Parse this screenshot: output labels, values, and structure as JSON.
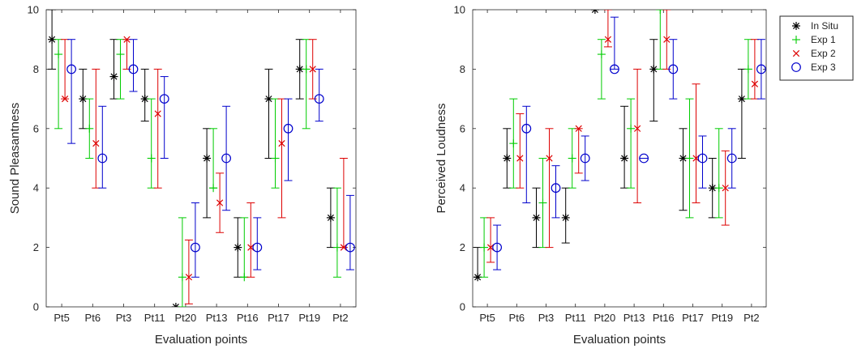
{
  "colors": {
    "In Situ": "#000000",
    "Exp 1": "#00cc00",
    "Exp 2": "#dd0000",
    "Exp 3": "#0000cc",
    "axis": "#262626",
    "background": "#ffffff"
  },
  "legend": {
    "placement": "top-right",
    "entries": [
      {
        "name": "In Situ",
        "marker": "asterisk"
      },
      {
        "name": "Exp 1",
        "marker": "plus"
      },
      {
        "name": "Exp 2",
        "marker": "cross"
      },
      {
        "name": "Exp 3",
        "marker": "circle"
      }
    ]
  },
  "chart_data": [
    {
      "type": "scatter",
      "title": "",
      "xlabel": "Evaluation points",
      "ylabel": "Sound Pleasantness",
      "ylim": [
        0,
        10
      ],
      "yticks": [
        0,
        2,
        4,
        6,
        8,
        10
      ],
      "grid": false,
      "categories": [
        "Pt5",
        "Pt6",
        "Pt3",
        "Pt11",
        "Pt20",
        "Pt13",
        "Pt16",
        "Pt17",
        "Pt19",
        "Pt2"
      ],
      "series": [
        {
          "name": "In Situ",
          "values": [
            9,
            7,
            7.75,
            7,
            0,
            5,
            2,
            7,
            8,
            3
          ],
          "low": [
            8,
            6,
            7,
            6.25,
            0,
            3,
            1,
            5,
            7,
            2
          ],
          "high": [
            10,
            8,
            9,
            8,
            0,
            6,
            3,
            8,
            9,
            4
          ]
        },
        {
          "name": "Exp 1",
          "values": [
            8.5,
            6,
            8.5,
            5,
            1,
            4,
            1,
            5,
            8,
            2
          ],
          "low": [
            6,
            5,
            7,
            4,
            0,
            4,
            1,
            4,
            6,
            1
          ],
          "high": [
            9,
            7,
            9,
            7,
            3,
            6,
            3,
            7,
            9,
            4
          ]
        },
        {
          "name": "Exp 2",
          "values": [
            7,
            5.5,
            9,
            6.5,
            1,
            3.5,
            2,
            5.5,
            8,
            2
          ],
          "low": [
            7,
            4,
            8,
            4,
            0.1,
            2.5,
            1,
            3,
            7,
            2
          ],
          "high": [
            9,
            8,
            9,
            8,
            2.25,
            4.5,
            3.5,
            7,
            9,
            5
          ]
        },
        {
          "name": "Exp 3",
          "values": [
            8,
            5,
            8,
            7,
            2,
            5,
            2,
            6,
            7,
            2
          ],
          "low": [
            5.5,
            4,
            7.25,
            5,
            1,
            3.25,
            1.25,
            4.25,
            6.25,
            1.25
          ],
          "high": [
            9,
            6.75,
            9,
            7.75,
            3.5,
            6.75,
            3,
            7,
            8,
            3.75
          ]
        }
      ]
    },
    {
      "type": "scatter",
      "title": "",
      "xlabel": "Evaluation points",
      "ylabel": "Perceived Loudness",
      "ylim": [
        0,
        10
      ],
      "yticks": [
        0,
        2,
        4,
        6,
        8,
        10
      ],
      "grid": false,
      "categories": [
        "Pt5",
        "Pt6",
        "Pt3",
        "Pt11",
        "Pt20",
        "Pt13",
        "Pt16",
        "Pt17",
        "Pt19",
        "Pt2"
      ],
      "series": [
        {
          "name": "In Situ",
          "values": [
            1,
            5,
            3,
            3,
            10,
            5,
            8,
            5,
            4,
            7
          ],
          "low": [
            1,
            4,
            2,
            2.15,
            10,
            4,
            6.25,
            3.25,
            3,
            5
          ],
          "high": [
            2,
            6,
            4,
            4,
            10,
            6.75,
            9,
            6,
            5,
            8
          ]
        },
        {
          "name": "Exp 1",
          "values": [
            2,
            5.5,
            3.5,
            5,
            8.5,
            6,
            10,
            5,
            4,
            8
          ],
          "low": [
            1,
            4,
            2,
            4,
            7,
            4,
            8,
            3,
            3,
            7
          ],
          "high": [
            3,
            7,
            5,
            6,
            9,
            7,
            10,
            7,
            6,
            9
          ]
        },
        {
          "name": "Exp 2",
          "values": [
            2,
            5,
            5,
            6,
            9,
            6,
            9,
            5,
            4,
            7.5
          ],
          "low": [
            1.5,
            4,
            2,
            4.5,
            8.75,
            3.5,
            8,
            3.5,
            2.75,
            7
          ],
          "high": [
            3,
            6.5,
            6,
            6,
            10,
            8,
            10,
            7.5,
            5.25,
            9
          ]
        },
        {
          "name": "Exp 3",
          "values": [
            2,
            6,
            4,
            5,
            8,
            5,
            8,
            5,
            5,
            8
          ],
          "low": [
            1.25,
            3.5,
            3,
            4.25,
            8,
            5,
            7,
            4,
            4,
            7
          ],
          "high": [
            2.75,
            6.75,
            4.75,
            5.75,
            9.75,
            5,
            9,
            5.75,
            6,
            9
          ]
        }
      ]
    }
  ]
}
